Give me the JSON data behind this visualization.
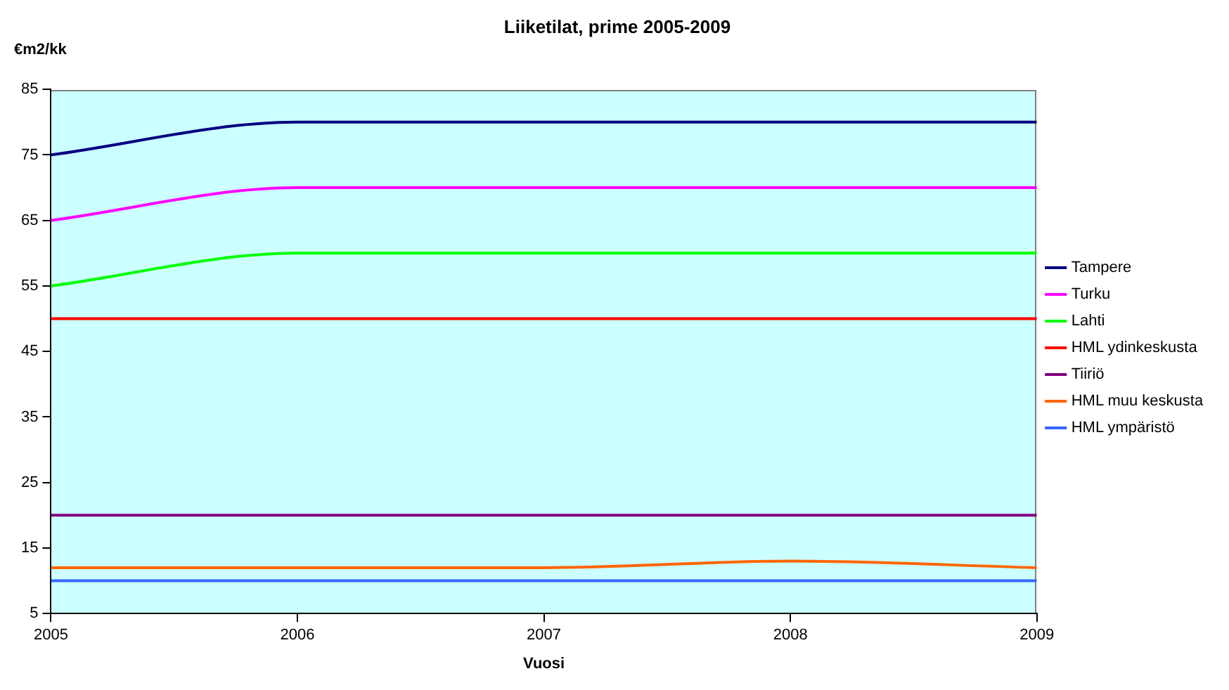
{
  "chart_data": {
    "type": "line",
    "title": "Liiketilat, prime 2005-2009",
    "xlabel": "Vuosi",
    "ylabel": "€m2/kk",
    "x": [
      2005,
      2006,
      2007,
      2008,
      2009
    ],
    "xlim": [
      2005,
      2009
    ],
    "xticks": [
      2005,
      2006,
      2007,
      2008,
      2009
    ],
    "ylim": [
      5,
      85
    ],
    "yticks": [
      5,
      15,
      25,
      35,
      45,
      55,
      65,
      75,
      85
    ],
    "grid": false,
    "legend": "right",
    "marker": "none",
    "line_style": "solid",
    "series": [
      {
        "name": "Tampere",
        "color": "#000080",
        "values": [
          75,
          80,
          80,
          80,
          80
        ]
      },
      {
        "name": "Turku",
        "color": "#ff00ff",
        "values": [
          65,
          70,
          70,
          70,
          70
        ]
      },
      {
        "name": "Lahti",
        "color": "#00ff00",
        "values": [
          55,
          60,
          60,
          60,
          60
        ]
      },
      {
        "name": "HML ydinkeskusta",
        "color": "#ff0000",
        "values": [
          50,
          50,
          50,
          50,
          50
        ]
      },
      {
        "name": "Tiiriö",
        "color": "#800080",
        "values": [
          20,
          20,
          20,
          20,
          20
        ]
      },
      {
        "name": "HML muu keskusta",
        "color": "#ff6600",
        "values": [
          12,
          12,
          12,
          13,
          12
        ]
      },
      {
        "name": "HML ympäristö",
        "color": "#3366ff",
        "values": [
          10,
          10,
          10,
          10,
          10
        ]
      }
    ]
  }
}
